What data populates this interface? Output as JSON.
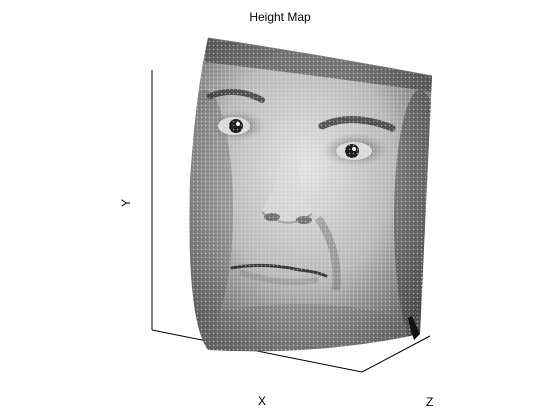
{
  "chart_data": {
    "type": "surface",
    "title": "Height Map",
    "xlabel": "X",
    "ylabel": "Y",
    "zlabel": "Z",
    "surface_texture": "grayscale-face-photo",
    "grid": false,
    "colormap": "gray",
    "overlay": "white-point-dots"
  }
}
